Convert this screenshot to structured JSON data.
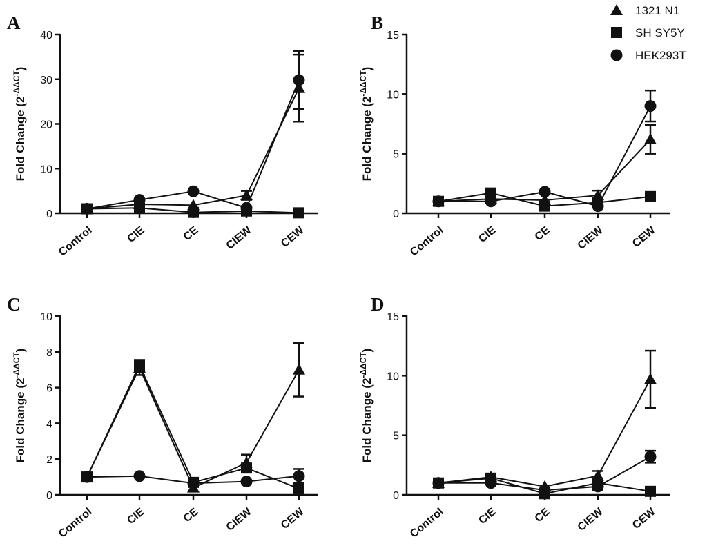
{
  "chart_data": [
    {
      "type": "line",
      "panel": "A",
      "categories": [
        "Control",
        "CIE",
        "CE",
        "CIEW",
        "CEW"
      ],
      "ylabel": "Fold Change (2",
      "ylabel_sup": "-ΔΔCT",
      "ylabel_close": ")",
      "ylim": [
        0,
        40
      ],
      "yticks": [
        0,
        10,
        20,
        30,
        40
      ],
      "series": [
        {
          "name": "1321 N1",
          "values": [
            1.0,
            2.0,
            1.8,
            4.0,
            28.0
          ],
          "err": [
            0,
            0,
            0,
            1.0,
            7.5
          ]
        },
        {
          "name": "SH SY5Y",
          "values": [
            1.0,
            1.2,
            0.2,
            0.5,
            0.1
          ],
          "err": [
            0,
            0,
            0,
            0,
            0
          ]
        },
        {
          "name": "HEK293T",
          "values": [
            1.0,
            3.0,
            4.9,
            1.2,
            29.8
          ],
          "err": [
            0,
            0,
            0,
            0,
            6.5
          ]
        }
      ]
    },
    {
      "type": "line",
      "panel": "B",
      "categories": [
        "Control",
        "CIE",
        "CE",
        "CIEW",
        "CEW"
      ],
      "ylabel": "Fold Change (2",
      "ylabel_sup": "-ΔΔCT",
      "ylabel_close": ")",
      "ylim": [
        0,
        15
      ],
      "yticks": [
        0,
        5,
        10,
        15
      ],
      "series": [
        {
          "name": "1321 N1",
          "values": [
            1.0,
            1.2,
            1.1,
            1.5,
            6.2
          ],
          "err": [
            0,
            0,
            0,
            0.4,
            1.2
          ]
        },
        {
          "name": "SH SY5Y",
          "values": [
            1.0,
            1.7,
            0.6,
            0.9,
            1.4
          ],
          "err": [
            0,
            0,
            0,
            0,
            0
          ]
        },
        {
          "name": "HEK293T",
          "values": [
            1.0,
            1.0,
            1.8,
            0.6,
            9.0
          ],
          "err": [
            0,
            0,
            0,
            0,
            1.3
          ]
        }
      ]
    },
    {
      "type": "line",
      "panel": "C",
      "categories": [
        "Control",
        "CIE",
        "CE",
        "CIEW",
        "CEW"
      ],
      "ylabel": "Fold Change (2",
      "ylabel_sup": "-ΔΔCT",
      "ylabel_close": ")",
      "ylim": [
        0,
        10
      ],
      "yticks": [
        0,
        2,
        4,
        6,
        8,
        10
      ],
      "series": [
        {
          "name": "1321 N1",
          "values": [
            1.0,
            7.1,
            0.4,
            1.8,
            7.0
          ],
          "err": [
            0,
            0.4,
            0,
            0.45,
            1.5
          ]
        },
        {
          "name": "SH SY5Y",
          "values": [
            1.0,
            7.25,
            0.7,
            1.5,
            0.35
          ],
          "err": [
            0,
            0.3,
            0,
            0,
            0
          ]
        },
        {
          "name": "HEK293T",
          "values": [
            1.0,
            1.05,
            0.65,
            0.75,
            1.05
          ],
          "err": [
            0,
            0,
            0,
            0,
            0.4
          ]
        }
      ]
    },
    {
      "type": "line",
      "panel": "D",
      "categories": [
        "Control",
        "CIE",
        "CE",
        "CIEW",
        "CEW"
      ],
      "ylabel": "Fold Change (2",
      "ylabel_sup": "-ΔΔCT",
      "ylabel_close": ")",
      "ylim": [
        0,
        15
      ],
      "yticks": [
        0,
        5,
        10,
        15
      ],
      "series": [
        {
          "name": "1321 N1",
          "values": [
            1.0,
            1.5,
            0.7,
            1.6,
            9.7
          ],
          "err": [
            0,
            0,
            0,
            0.4,
            2.4
          ]
        },
        {
          "name": "SH SY5Y",
          "values": [
            1.0,
            1.4,
            0.1,
            1.0,
            0.3
          ],
          "err": [
            0,
            0,
            0,
            0,
            0
          ]
        },
        {
          "name": "HEK293T",
          "values": [
            1.0,
            1.0,
            0.4,
            0.7,
            3.2
          ],
          "err": [
            0,
            0,
            0,
            0.3,
            0.5
          ]
        }
      ]
    }
  ],
  "legend": {
    "placement": "top-right",
    "items": [
      {
        "label": "1321 N1",
        "marker": "triangle"
      },
      {
        "label": "SH SY5Y",
        "marker": "square"
      },
      {
        "label": "HEK293T",
        "marker": "circle"
      }
    ]
  },
  "colors": {
    "ink": "#111111",
    "background": "#ffffff"
  }
}
